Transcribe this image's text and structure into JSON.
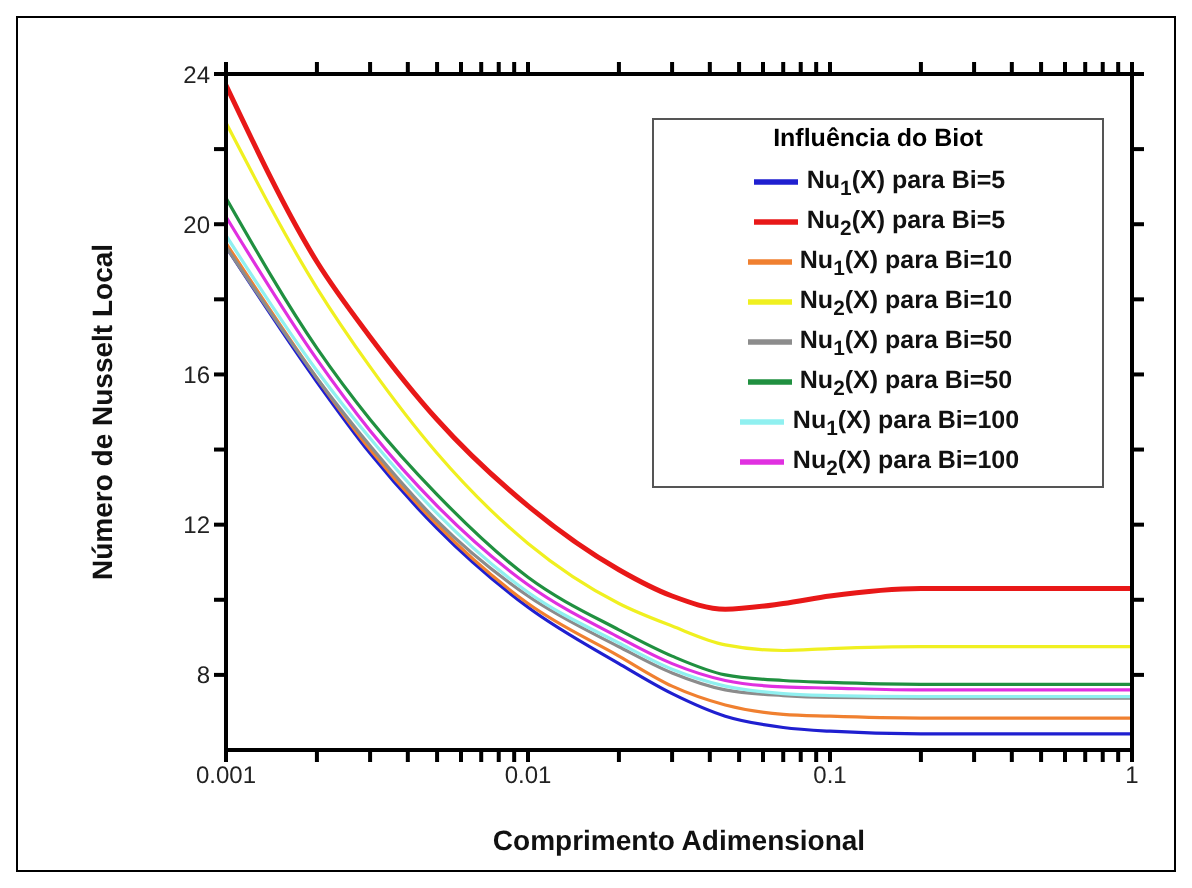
{
  "chart_data": {
    "type": "line",
    "xlabel": "Comprimento Adimensional",
    "ylabel": "Número de Nusselt Local",
    "legend_title": "Influência do Biot",
    "log": "x",
    "xlim": [
      0.001,
      1
    ],
    "ylim": [
      6,
      24
    ],
    "xticks": [
      0.001,
      {
        "value": 0.002,
        "label": null
      },
      {
        "value": 0.003,
        "label": null
      },
      {
        "value": 0.004,
        "label": null
      },
      {
        "value": 0.005,
        "label": null
      },
      {
        "value": 0.006,
        "label": null
      },
      {
        "value": 0.007,
        "label": null
      },
      {
        "value": 0.008,
        "label": null
      },
      {
        "value": 0.009,
        "label": null
      },
      0.01,
      {
        "value": 0.02,
        "label": null
      },
      {
        "value": 0.03,
        "label": null
      },
      {
        "value": 0.04,
        "label": null
      },
      {
        "value": 0.05,
        "label": null
      },
      {
        "value": 0.06,
        "label": null
      },
      {
        "value": 0.07,
        "label": null
      },
      {
        "value": 0.08,
        "label": null
      },
      {
        "value": 0.09,
        "label": null
      },
      0.1,
      {
        "value": 0.2,
        "label": null
      },
      {
        "value": 0.3,
        "label": null
      },
      {
        "value": 0.4,
        "label": null
      },
      {
        "value": 0.5,
        "label": null
      },
      {
        "value": 0.6,
        "label": null
      },
      {
        "value": 0.7,
        "label": null
      },
      {
        "value": 0.8,
        "label": null
      },
      {
        "value": 0.9,
        "label": null
      },
      1
    ],
    "yticks": [
      8,
      {
        "value": 10,
        "label": null
      },
      12,
      {
        "value": 14,
        "label": null
      },
      16,
      {
        "value": 18,
        "label": null
      },
      20,
      {
        "value": 22,
        "label": null
      },
      24
    ],
    "grid": false,
    "legend": "top right",
    "marker": "none",
    "line_style": "solid",
    "x": [
      0.001,
      0.002,
      0.003,
      0.005,
      0.01,
      0.02,
      0.03,
      0.045,
      0.07,
      0.1,
      0.2,
      1
    ],
    "series": [
      {
        "name": "Nu$_{1}$(X) para Bi=5",
        "color": "#1f1fd0",
        "values": [
          19.4,
          15.8,
          13.9,
          11.9,
          9.8,
          8.3,
          7.5,
          6.9,
          6.6,
          6.5,
          6.43,
          6.43
        ]
      },
      {
        "name": "Nu$_{2}$(X) para Bi=5",
        "color": "#e81818",
        "values": [
          23.7,
          19.0,
          17.0,
          14.8,
          12.5,
          10.8,
          10.1,
          9.75,
          9.9,
          10.1,
          10.3,
          10.3
        ]
      },
      {
        "name": "Nu$_{1}$(X) para Bi=10",
        "color": "#f08030",
        "values": [
          19.5,
          15.9,
          14.0,
          12.0,
          9.9,
          8.5,
          7.7,
          7.2,
          6.95,
          6.9,
          6.85,
          6.85
        ]
      },
      {
        "name": "Nu$_{2}$(X) para Bi=10",
        "color": "#f0f020",
        "values": [
          22.7,
          18.3,
          16.2,
          13.9,
          11.5,
          9.9,
          9.3,
          8.8,
          8.65,
          8.7,
          8.75,
          8.75
        ]
      },
      {
        "name": "Nu$_{1}$(X) para Bi=50",
        "color": "#8c8c8c",
        "values": [
          19.4,
          15.9,
          14.1,
          12.1,
          10.1,
          8.75,
          8.05,
          7.6,
          7.45,
          7.4,
          7.38,
          7.38
        ]
      },
      {
        "name": "Nu$_{2}$(X) para Bi=50",
        "color": "#209040",
        "values": [
          20.7,
          16.7,
          14.8,
          12.8,
          10.6,
          9.2,
          8.5,
          8.0,
          7.85,
          7.8,
          7.75,
          7.75
        ]
      },
      {
        "name": "Nu$_{1}$(X) para Bi=100",
        "color": "#90f0f0",
        "values": [
          19.7,
          16.1,
          14.3,
          12.3,
          10.2,
          8.85,
          8.15,
          7.7,
          7.5,
          7.45,
          7.42,
          7.42
        ]
      },
      {
        "name": "Nu$_{2}$(X) para Bi=100",
        "color": "#e030e0",
        "values": [
          20.2,
          16.4,
          14.5,
          12.5,
          10.4,
          9.0,
          8.3,
          7.85,
          7.68,
          7.65,
          7.6,
          7.6
        ]
      }
    ]
  }
}
